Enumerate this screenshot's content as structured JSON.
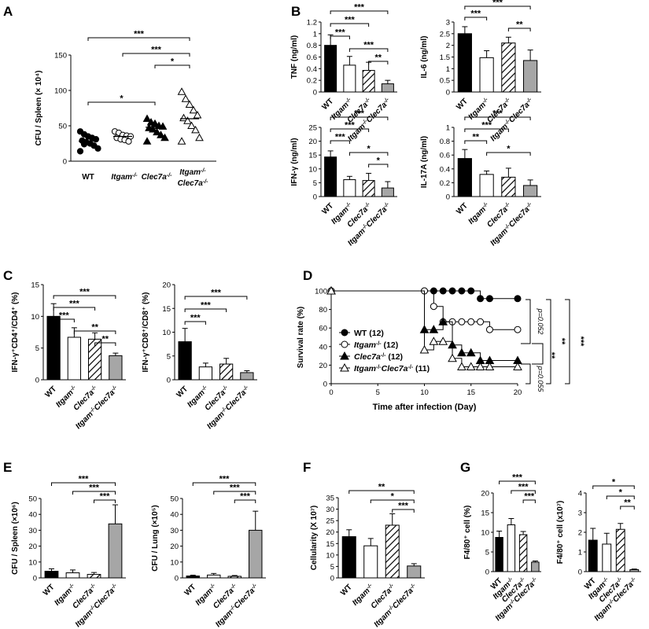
{
  "panels": {
    "A": "A",
    "B": "B",
    "C": "C",
    "D": "D",
    "E": "E",
    "F": "F",
    "G": "G"
  },
  "chart_data": [
    {
      "id": "A",
      "type": "scatter",
      "ylabel": "CFU / Spleen (× 10⁴)",
      "ylim": [
        0,
        150
      ],
      "yticks": [
        0,
        50,
        100,
        150
      ],
      "categories": [
        "WT",
        "Itgam⁻/⁻",
        "Clec7a⁻/⁻",
        "Itgam⁻/⁻ Clec7a⁻/⁻"
      ],
      "series": [
        {
          "name": "WT",
          "marker": "filled-circle",
          "median": 28,
          "values": [
            42,
            38,
            35,
            33,
            31,
            29,
            27,
            25,
            22,
            18,
            14,
            24
          ]
        },
        {
          "name": "Itgam⁻/⁻",
          "marker": "open-circle",
          "median": 35,
          "values": [
            42,
            40,
            37,
            36,
            35,
            33,
            31,
            30,
            28
          ]
        },
        {
          "name": "Clec7a⁻/⁻",
          "marker": "filled-triangle",
          "median": 48,
          "values": [
            60,
            55,
            53,
            50,
            49,
            47,
            45,
            41,
            37,
            33,
            28
          ]
        },
        {
          "name": "Itgam⁻/⁻ Clec7a⁻/⁻",
          "marker": "open-triangle",
          "median": 60,
          "values": [
            98,
            88,
            80,
            72,
            65,
            61,
            57,
            50,
            44,
            33,
            28
          ]
        }
      ],
      "significance": [
        {
          "from": 0,
          "to": 3,
          "label": "***"
        },
        {
          "from": 1,
          "to": 3,
          "label": "***"
        },
        {
          "from": 2,
          "to": 3,
          "label": "*"
        },
        {
          "from": 0,
          "to": 2,
          "label": "*"
        }
      ]
    },
    {
      "id": "B-TNF",
      "type": "bar",
      "ylabel": "TNF (ng/ml)",
      "ylim": [
        0,
        1.2
      ],
      "yticks": [
        0,
        0.2,
        0.4,
        0.6,
        0.8,
        1,
        1.2
      ],
      "ytickLabels": [
        "0",
        "0.2",
        "0.4",
        "0.6",
        "0.8",
        "1",
        "1.2"
      ],
      "values": [
        0.8,
        0.46,
        0.37,
        0.14
      ],
      "errors": [
        0.18,
        0.15,
        0.14,
        0.06
      ],
      "significance": [
        {
          "from": 0,
          "to": 3,
          "label": "***"
        },
        {
          "from": 0,
          "to": 2,
          "label": "***"
        },
        {
          "from": 0,
          "to": 1,
          "label": "***"
        },
        {
          "from": 1,
          "to": 3,
          "label": "***"
        },
        {
          "from": 2,
          "to": 3,
          "label": "**"
        }
      ]
    },
    {
      "id": "B-IL6",
      "type": "bar",
      "ylabel": "IL-6 (ng/ml)",
      "ylim": [
        0,
        3
      ],
      "yticks": [
        0,
        0.5,
        1,
        1.5,
        2,
        2.5,
        3
      ],
      "ytickLabels": [
        "0",
        "0.5",
        "1",
        "1.5",
        "2",
        "2.5",
        "3"
      ],
      "values": [
        2.5,
        1.47,
        2.1,
        1.35
      ],
      "errors": [
        0.3,
        0.3,
        0.25,
        0.45
      ],
      "significance": [
        {
          "from": 0,
          "to": 3,
          "label": "***"
        },
        {
          "from": 0,
          "to": 1,
          "label": "***"
        },
        {
          "from": 2,
          "to": 3,
          "label": "**"
        }
      ]
    },
    {
      "id": "B-IFNg",
      "type": "bar",
      "ylabel": "IFN-γ (ng/ml)",
      "ylim": [
        0,
        25
      ],
      "yticks": [
        0,
        5,
        10,
        15,
        20,
        25
      ],
      "ytickLabels": [
        "0",
        "5",
        "10",
        "15",
        "20",
        "25"
      ],
      "values": [
        14.3,
        6.1,
        5.8,
        3.1
      ],
      "errors": [
        2.2,
        1.2,
        2.6,
        2.3
      ],
      "significance": [
        {
          "from": 0,
          "to": 3,
          "label": "***"
        },
        {
          "from": 0,
          "to": 2,
          "label": "***"
        },
        {
          "from": 0,
          "to": 1,
          "label": "***"
        },
        {
          "from": 1,
          "to": 3,
          "label": "*"
        },
        {
          "from": 2,
          "to": 3,
          "label": "*"
        }
      ]
    },
    {
      "id": "B-IL17A",
      "type": "bar",
      "ylabel": "IL-17A (ng/ml)",
      "ylim": [
        0,
        1
      ],
      "yticks": [
        0,
        0.2,
        0.4,
        0.6,
        0.8,
        1
      ],
      "ytickLabels": [
        "0",
        "0.2",
        "0.4",
        "0.6",
        "0.8",
        "1"
      ],
      "values": [
        0.55,
        0.32,
        0.28,
        0.16
      ],
      "errors": [
        0.13,
        0.05,
        0.13,
        0.08
      ],
      "significance": [
        {
          "from": 0,
          "to": 3,
          "label": "***"
        },
        {
          "from": 0,
          "to": 2,
          "label": "***"
        },
        {
          "from": 0,
          "to": 1,
          "label": "**"
        },
        {
          "from": 1,
          "to": 3,
          "label": "*"
        }
      ]
    },
    {
      "id": "C-CD4",
      "type": "bar",
      "ylabel": "IFN-γ⁺CD4⁺/CD4⁺ (%)",
      "ylim": [
        0,
        15
      ],
      "yticks": [
        0,
        5,
        10,
        15
      ],
      "ytickLabels": [
        "0",
        "5",
        "10",
        "15"
      ],
      "values": [
        10,
        6.7,
        6.4,
        3.8
      ],
      "errors": [
        2.0,
        1.5,
        1.0,
        0.4
      ],
      "significance": [
        {
          "from": 0,
          "to": 3,
          "label": "***"
        },
        {
          "from": 0,
          "to": 2,
          "label": "***"
        },
        {
          "from": 0,
          "to": 1,
          "label": "***"
        },
        {
          "from": 1,
          "to": 3,
          "label": "**"
        },
        {
          "from": 2,
          "to": 3,
          "label": "**"
        }
      ]
    },
    {
      "id": "C-CD8",
      "type": "bar",
      "ylabel": "IFN-γ⁺CD8⁺/CD8⁺ (%)",
      "ylim": [
        0,
        20
      ],
      "yticks": [
        0,
        5,
        10,
        15,
        20
      ],
      "ytickLabels": [
        "0",
        "5",
        "10",
        "15",
        "20"
      ],
      "values": [
        8.0,
        2.7,
        3.3,
        1.5
      ],
      "errors": [
        2.8,
        0.8,
        1.2,
        0.4
      ],
      "significance": [
        {
          "from": 0,
          "to": 3,
          "label": "***"
        },
        {
          "from": 0,
          "to": 2,
          "label": "***"
        },
        {
          "from": 0,
          "to": 1,
          "label": "***"
        }
      ]
    },
    {
      "id": "D",
      "type": "line",
      "step": true,
      "xlabel": "Time after infection (Day)",
      "ylabel": "Survival rate (%)",
      "xlim": [
        0,
        20
      ],
      "ylim": [
        0,
        100
      ],
      "xticks": [
        0,
        5,
        10,
        15,
        20
      ],
      "yticks": [
        0,
        20,
        40,
        60,
        80,
        100
      ],
      "series": [
        {
          "name": "WT (12)",
          "marker": "filled-circle",
          "x": [
            0,
            10,
            11,
            12,
            13,
            14,
            15,
            16,
            17,
            20
          ],
          "y": [
            100,
            100,
            100,
            100,
            100,
            100,
            100,
            91.7,
            91.7,
            91.7
          ]
        },
        {
          "name": "Itgam⁻/⁻ (12)",
          "marker": "open-circle",
          "x": [
            0,
            10,
            11,
            12,
            13,
            14,
            15,
            16,
            17,
            20
          ],
          "y": [
            100,
            100,
            83.3,
            66.7,
            66.7,
            66.7,
            66.7,
            66.7,
            58.3,
            58.3
          ]
        },
        {
          "name": "Clec7a⁻/⁻ (12)",
          "marker": "filled-triangle",
          "x": [
            0,
            10,
            11,
            12,
            13,
            14,
            15,
            16,
            17,
            20
          ],
          "y": [
            100,
            58.3,
            58.3,
            66.7,
            41.7,
            33.3,
            33.3,
            25,
            25,
            25
          ]
        },
        {
          "name": "Itgam⁻/⁻Clec7a⁻/⁻ (11)",
          "marker": "open-triangle",
          "x": [
            0,
            10,
            11,
            12,
            13,
            14,
            15,
            16,
            17,
            20
          ],
          "y": [
            100,
            36.4,
            45.5,
            45.5,
            27.3,
            18.2,
            18.2,
            18.2,
            18.2,
            18.2
          ]
        }
      ],
      "legend_placement": "bottom-left",
      "annotations": [
        "p=0.052",
        "p=0.055",
        "**",
        "**",
        "***"
      ]
    },
    {
      "id": "E-Spleen",
      "type": "bar",
      "ylabel": "CFU / Spleen (×10⁶)",
      "ylim": [
        0,
        50
      ],
      "yticks": [
        0,
        10,
        20,
        30,
        40,
        50
      ],
      "ytickLabels": [
        "0",
        "10",
        "20",
        "30",
        "40",
        "50"
      ],
      "values": [
        4.2,
        3.2,
        2.2,
        34
      ],
      "errors": [
        1.5,
        1.8,
        1.2,
        12
      ],
      "significance": [
        {
          "from": 0,
          "to": 3,
          "label": "***"
        },
        {
          "from": 1,
          "to": 3,
          "label": "***"
        },
        {
          "from": 2,
          "to": 3,
          "label": "***"
        }
      ]
    },
    {
      "id": "E-Lung",
      "type": "bar",
      "ylabel": "CFU / Lung (×10⁵)",
      "ylim": [
        0,
        50
      ],
      "yticks": [
        0,
        10,
        20,
        30,
        40,
        50
      ],
      "ytickLabels": [
        "0",
        "10",
        "20",
        "30",
        "40",
        "50"
      ],
      "values": [
        1.2,
        1.8,
        1.0,
        30
      ],
      "errors": [
        0.5,
        1.0,
        0.5,
        12
      ],
      "significance": [
        {
          "from": 0,
          "to": 3,
          "label": "***"
        },
        {
          "from": 1,
          "to": 3,
          "label": "***"
        },
        {
          "from": 2,
          "to": 3,
          "label": "***"
        }
      ]
    },
    {
      "id": "F",
      "type": "bar",
      "ylabel": "Cellularity (X 10⁷)",
      "ylim": [
        0,
        35
      ],
      "yticks": [
        0,
        5,
        10,
        15,
        20,
        25,
        30,
        35
      ],
      "ytickLabels": [
        "0",
        "5",
        "10",
        "15",
        "20",
        "25",
        "30",
        "35"
      ],
      "values": [
        18,
        14,
        23,
        5.2
      ],
      "errors": [
        3,
        3.2,
        5,
        1
      ],
      "significance": [
        {
          "from": 0,
          "to": 3,
          "label": "**"
        },
        {
          "from": 1,
          "to": 3,
          "label": "*"
        },
        {
          "from": 2,
          "to": 3,
          "label": "***"
        }
      ]
    },
    {
      "id": "G-pct",
      "type": "bar",
      "ylabel": "F4/80⁺ cell (%)",
      "ylim": [
        0,
        20
      ],
      "yticks": [
        0,
        5,
        10,
        15,
        20
      ],
      "ytickLabels": [
        "0",
        "5",
        "10",
        "15",
        "20"
      ],
      "values": [
        8.7,
        11.9,
        9.4,
        2.4
      ],
      "errors": [
        1.6,
        1.6,
        0.8,
        0.3
      ],
      "significance": [
        {
          "from": 0,
          "to": 3,
          "label": "***"
        },
        {
          "from": 1,
          "to": 3,
          "label": "***"
        },
        {
          "from": 2,
          "to": 3,
          "label": "***"
        }
      ]
    },
    {
      "id": "G-abs",
      "type": "bar",
      "ylabel": "F4/80⁺ cell (x10⁷)",
      "ylim": [
        0,
        4
      ],
      "yticks": [
        0,
        1,
        2,
        3,
        4
      ],
      "ytickLabels": [
        "0",
        "1",
        "2",
        "3",
        "4"
      ],
      "values": [
        1.6,
        1.4,
        2.15,
        0.1
      ],
      "errors": [
        0.6,
        0.55,
        0.3,
        0.03
      ],
      "significance": [
        {
          "from": 0,
          "to": 3,
          "label": "*"
        },
        {
          "from": 1,
          "to": 3,
          "label": "*"
        },
        {
          "from": 2,
          "to": 3,
          "label": "**"
        }
      ]
    }
  ],
  "group_labels": [
    "WT",
    "Itgam⁻/⁻",
    "Clec7a⁻/⁻",
    "Itgam⁻/⁻Clec7a⁻/⁻"
  ],
  "bar_fills": [
    "solid-black",
    "white",
    "hatched",
    "gray"
  ],
  "colors": {
    "ink": "#000000",
    "gray_fill": "#a6a6a6",
    "white_fill": "#ffffff"
  }
}
